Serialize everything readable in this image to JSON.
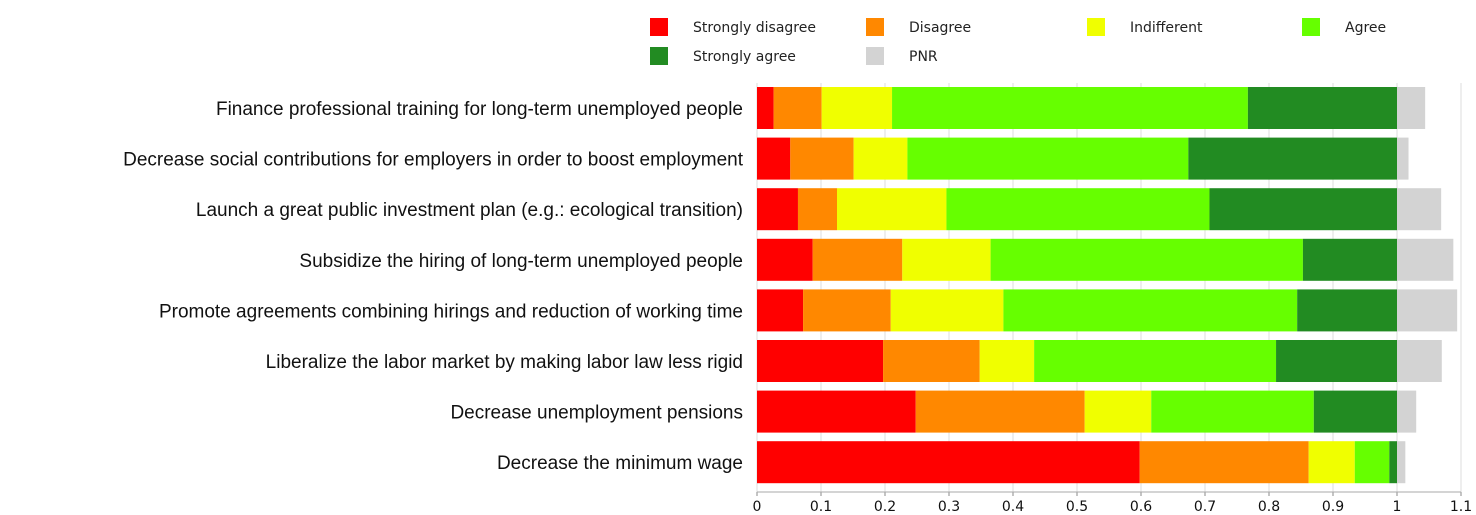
{
  "chart_data": {
    "type": "bar",
    "orientation": "horizontal",
    "stacked": true,
    "title": "",
    "xlabel": "",
    "ylabel": "",
    "xlim": [
      0,
      1.1
    ],
    "xticks": [
      "0",
      "0.1",
      "0.2",
      "0.3",
      "0.4",
      "0.5",
      "0.6",
      "0.7",
      "0.8",
      "0.9",
      "1",
      "1.1"
    ],
    "grid": "vertical",
    "legend_position": "top-right",
    "categories": [
      "Finance professional training for long-term unemployed people",
      "Decrease social contributions for employers in order to boost employment",
      "Launch a great public investment plan (e.g.: ecological transition)",
      "Subsidize the hiring of long-term unemployed people",
      "Promote agreements combining hirings and reduction of working time",
      "Liberalize the labor market by making labor law less rigid",
      "Decrease unemployment pensions",
      "Decrease the minimum wage"
    ],
    "series": [
      {
        "name": "Strongly disagree",
        "color": "#ff0000",
        "values": [
          0.026,
          0.052,
          0.064,
          0.087,
          0.072,
          0.197,
          0.248,
          0.598
        ]
      },
      {
        "name": "Disagree",
        "color": "#ff8800",
        "values": [
          0.075,
          0.099,
          0.061,
          0.14,
          0.137,
          0.151,
          0.264,
          0.264
        ]
      },
      {
        "name": "Indifferent",
        "color": "#f0ff00",
        "values": [
          0.11,
          0.084,
          0.171,
          0.138,
          0.176,
          0.085,
          0.104,
          0.072
        ]
      },
      {
        "name": "Agree",
        "color": "#66ff00",
        "values": [
          0.556,
          0.439,
          0.411,
          0.488,
          0.459,
          0.378,
          0.254,
          0.054
        ]
      },
      {
        "name": "Strongly agree",
        "color": "#228b22",
        "values": [
          0.233,
          0.326,
          0.293,
          0.147,
          0.156,
          0.189,
          0.13,
          0.012
        ]
      },
      {
        "name": "PNR",
        "color": "#d3d3d3",
        "values": [
          0.044,
          0.018,
          0.069,
          0.088,
          0.094,
          0.07,
          0.03,
          0.013
        ]
      }
    ]
  }
}
